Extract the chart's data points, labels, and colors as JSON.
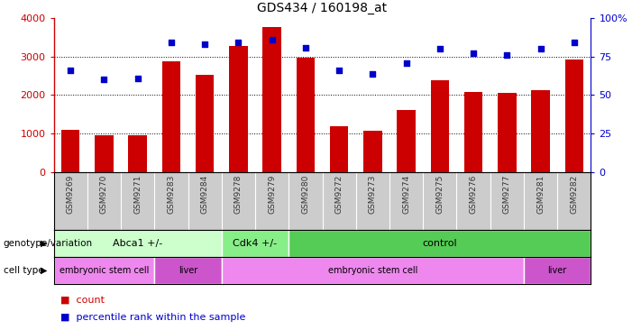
{
  "title": "GDS434 / 160198_at",
  "samples": [
    "GSM9269",
    "GSM9270",
    "GSM9271",
    "GSM9283",
    "GSM9284",
    "GSM9278",
    "GSM9279",
    "GSM9280",
    "GSM9272",
    "GSM9273",
    "GSM9274",
    "GSM9275",
    "GSM9276",
    "GSM9277",
    "GSM9281",
    "GSM9282"
  ],
  "counts": [
    1100,
    950,
    950,
    2870,
    2530,
    3280,
    3780,
    2960,
    1180,
    1080,
    1610,
    2380,
    2070,
    2060,
    2120,
    2930
  ],
  "percentiles": [
    66,
    60,
    61,
    84,
    83,
    84,
    86,
    81,
    66,
    64,
    71,
    80,
    77,
    76,
    80,
    84
  ],
  "ylim_left": [
    0,
    4000
  ],
  "ylim_right": [
    0,
    100
  ],
  "yticks_left": [
    0,
    1000,
    2000,
    3000,
    4000
  ],
  "yticks_right": [
    0,
    25,
    50,
    75,
    100
  ],
  "bar_color": "#cc0000",
  "dot_color": "#0000cc",
  "genotype_groups": [
    {
      "label": "Abca1 +/-",
      "start": 0,
      "end": 5,
      "color": "#ccffcc"
    },
    {
      "label": "Cdk4 +/-",
      "start": 5,
      "end": 7,
      "color": "#88ee88"
    },
    {
      "label": "control",
      "start": 7,
      "end": 16,
      "color": "#55cc55"
    }
  ],
  "celltype_groups": [
    {
      "label": "embryonic stem cell",
      "start": 0,
      "end": 3,
      "color": "#ee88ee"
    },
    {
      "label": "liver",
      "start": 3,
      "end": 5,
      "color": "#cc55cc"
    },
    {
      "label": "embryonic stem cell",
      "start": 5,
      "end": 14,
      "color": "#ee88ee"
    },
    {
      "label": "liver",
      "start": 14,
      "end": 16,
      "color": "#cc55cc"
    }
  ],
  "genotype_label": "genotype/variation",
  "celltype_label": "cell type",
  "legend_count_label": "count",
  "legend_pct_label": "percentile rank within the sample",
  "tick_label_color": "#333333",
  "axis_label_color": "#cc0000",
  "right_axis_label_color": "#0000cc",
  "xtick_bg_color": "#cccccc",
  "border_color": "#888888"
}
